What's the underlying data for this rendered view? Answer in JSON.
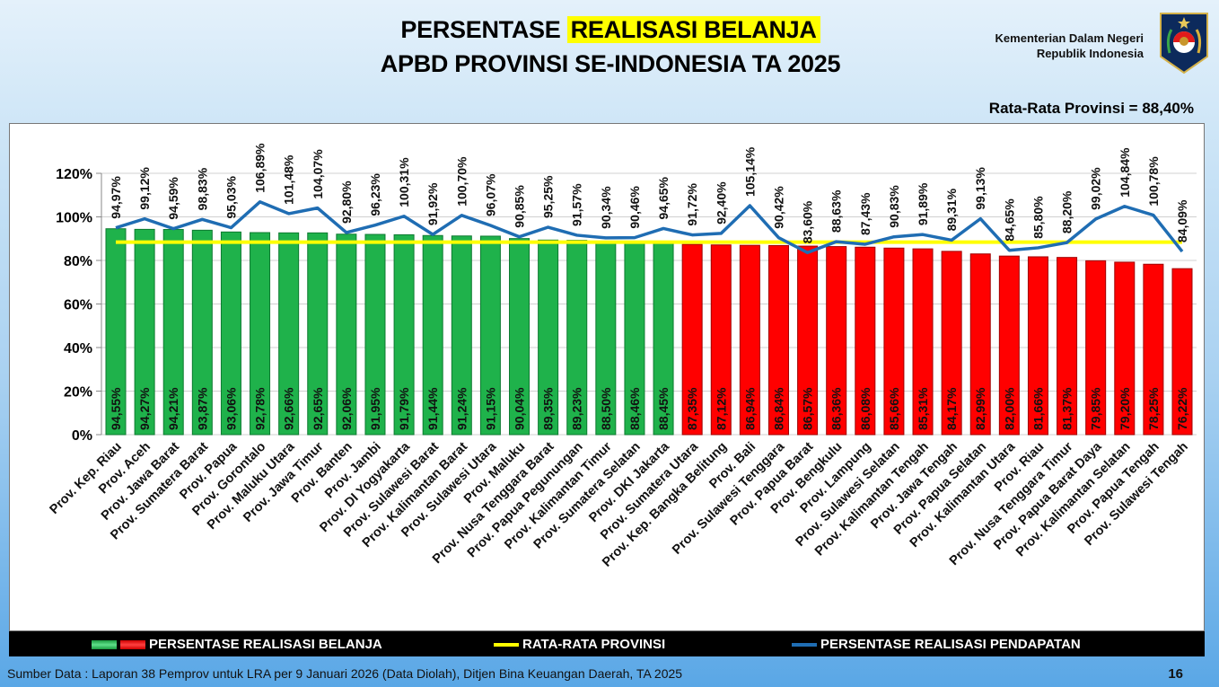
{
  "header": {
    "title_line1_prefix": "PERSENTASE ",
    "title_line1_highlight": "REALISASI BELANJA",
    "title_line2": "APBD PROVINSI SE-INDONESIA TA 2025",
    "org_line1": "Kementerian Dalam Negeri",
    "org_line2": "Republik Indonesia",
    "average_label": "Rata-Rata Provinsi = 88,40%"
  },
  "legend": {
    "belanja": "PERSENTASE REALISASI BELANJA",
    "rata": "RATA-RATA PROVINSI",
    "pendapatan": "PERSENTASE REALISASI PENDAPATAN"
  },
  "footer": {
    "source": "Sumber Data : Laporan 38 Pemprov untuk LRA per 9 Januari 2026 (Data Diolah), Ditjen Bina Keuangan Daerah, TA 2025",
    "page_number": "16"
  },
  "chart_data": {
    "type": "bar",
    "title": "PERSENTASE REALISASI BELANJA APBD PROVINSI SE-INDONESIA TA 2025",
    "ylim": [
      0,
      120
    ],
    "yticks": [
      "0%",
      "20%",
      "40%",
      "60%",
      "80%",
      "100%",
      "120%"
    ],
    "grid": true,
    "legend_position": "bottom",
    "average": 88.4,
    "colors": {
      "above_average": "#1fb24b",
      "below_average": "#ff0000",
      "average_line": "#ffff00",
      "pendapatan_line": "#1f6db3"
    },
    "categories": [
      "Prov. Kep. Riau",
      "Prov. Aceh",
      "Prov. Jawa Barat",
      "Prov. Sumatera Barat",
      "Prov. Papua",
      "Prov. Gorontalo",
      "Prov. Maluku Utara",
      "Prov. Jawa Timur",
      "Prov. Banten",
      "Prov. Jambi",
      "Prov. DI Yogyakarta",
      "Prov. Sulawesi Barat",
      "Prov. Kalimantan Barat",
      "Prov. Sulawesi Utara",
      "Prov. Maluku",
      "Prov. Nusa Tenggara Barat",
      "Prov. Papua Pegunungan",
      "Prov. Kalimantan Timur",
      "Prov. Sumatera Selatan",
      "Prov. DKI Jakarta",
      "Prov. Sumatera Utara",
      "Prov. Kep. Bangka Belitung",
      "Prov. Bali",
      "Prov. Sulawesi Tenggara",
      "Prov. Papua Barat",
      "Prov. Bengkulu",
      "Prov. Lampung",
      "Prov. Sulawesi Selatan",
      "Prov. Kalimantan Tengah",
      "Prov. Jawa Tengah",
      "Prov. Papua Selatan",
      "Prov. Kalimantan Utara",
      "Prov. Riau",
      "Prov. Nusa Tenggara Timur",
      "Prov. Papua Barat Daya",
      "Prov. Kalimantan Selatan",
      "Prov. Papua Tengah",
      "Prov. Sulawesi Tengah"
    ],
    "series": [
      {
        "name": "PERSENTASE REALISASI BELANJA",
        "type": "bar",
        "values": [
          94.55,
          94.27,
          94.21,
          93.87,
          93.06,
          92.78,
          92.66,
          92.65,
          92.06,
          91.95,
          91.79,
          91.44,
          91.24,
          91.15,
          90.04,
          89.35,
          89.23,
          88.5,
          88.46,
          88.45,
          87.35,
          87.12,
          86.94,
          86.84,
          86.57,
          86.36,
          86.08,
          85.66,
          85.31,
          84.17,
          82.99,
          82.0,
          81.66,
          81.37,
          79.85,
          79.2,
          78.25,
          76.22
        ]
      },
      {
        "name": "PERSENTASE REALISASI PENDAPATAN",
        "type": "line",
        "values": [
          94.97,
          99.12,
          94.59,
          98.83,
          95.03,
          106.89,
          101.48,
          104.07,
          92.8,
          96.23,
          100.31,
          91.92,
          100.7,
          96.07,
          90.85,
          95.25,
          91.57,
          90.34,
          90.46,
          94.65,
          91.72,
          92.4,
          105.14,
          90.42,
          83.6,
          88.63,
          87.43,
          90.83,
          91.89,
          89.31,
          99.13,
          84.65,
          85.8,
          88.2,
          99.02,
          104.84,
          100.78,
          84.09
        ]
      },
      {
        "name": "RATA-RATA PROVINSI",
        "type": "line",
        "value": 88.4
      }
    ]
  }
}
